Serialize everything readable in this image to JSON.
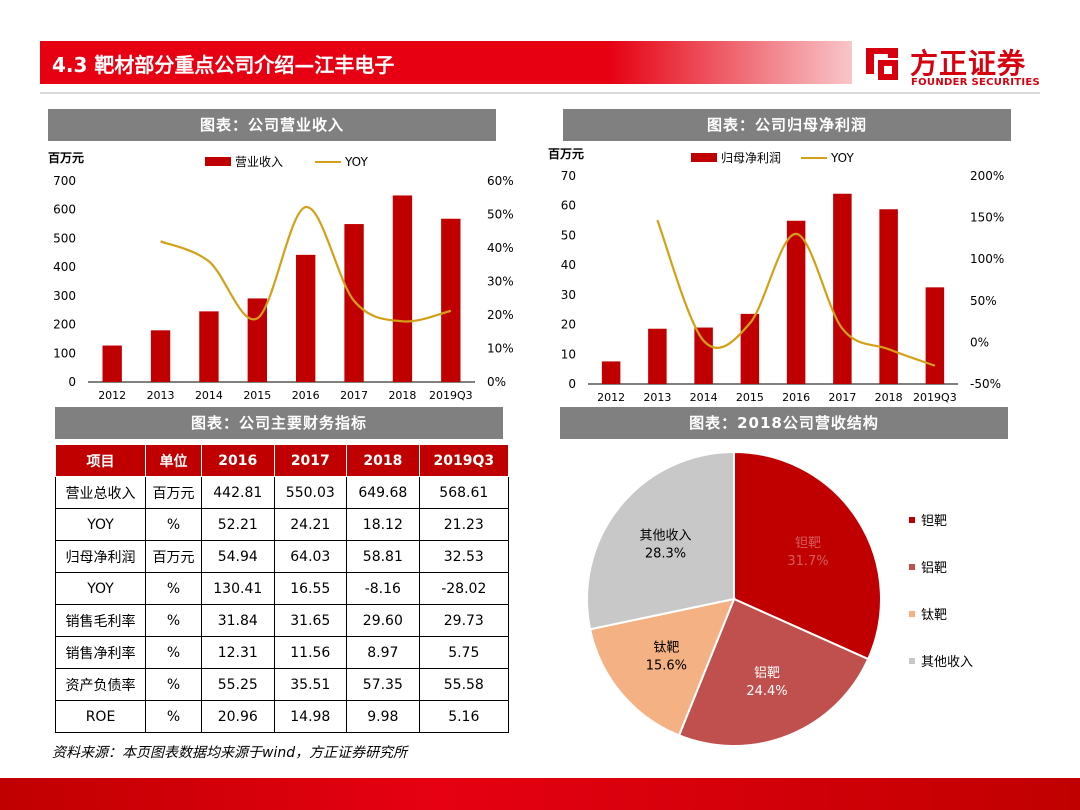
{
  "header": {
    "title": "4.3 靶材部分重点公司介绍—江丰电子"
  },
  "brand": {
    "name_cn": "方正证券",
    "name_en": "FOUNDER SECURITIES",
    "accent": "#e60012"
  },
  "sections": {
    "revenue": "图表：公司营业收入",
    "profit": "图表：公司归母净利润",
    "table": "图表：公司主要财务指标",
    "pie": "图表：2018公司营收结构"
  },
  "chart_data": [
    {
      "type": "bar",
      "title": "图表：公司营业收入",
      "ylabel": "百万元",
      "categories": [
        "2012",
        "2013",
        "2014",
        "2015",
        "2016",
        "2017",
        "2018",
        "2019Q3"
      ],
      "series": [
        {
          "name": "营业收入",
          "axis": "left",
          "values": [
            127,
            180,
            246,
            291,
            442.81,
            550.03,
            649.68,
            568.61
          ],
          "color": "#c00000"
        },
        {
          "name": "YOY",
          "type": "line",
          "axis": "right",
          "values": [
            null,
            42,
            36,
            19,
            52.21,
            24.21,
            18.12,
            21.23
          ],
          "color": "#d4a017"
        }
      ],
      "ylim": [
        0,
        700
      ],
      "yticks": [
        "0",
        "100",
        "200",
        "300",
        "400",
        "500",
        "600",
        "700"
      ],
      "y2lim": [
        0,
        60
      ],
      "y2ticks": [
        "0%",
        "10%",
        "20%",
        "30%",
        "40%",
        "50%",
        "60%"
      ],
      "legend": "top"
    },
    {
      "type": "bar",
      "title": "图表：公司归母净利润",
      "ylabel": "百万元",
      "categories": [
        "2012",
        "2013",
        "2014",
        "2015",
        "2016",
        "2017",
        "2018",
        "2019Q3"
      ],
      "series": [
        {
          "name": "归母净利润",
          "axis": "left",
          "values": [
            7.6,
            18.6,
            19.0,
            23.6,
            54.94,
            64.03,
            58.81,
            32.53
          ],
          "color": "#c00000"
        },
        {
          "name": "YOY",
          "type": "line",
          "axis": "right",
          "values": [
            null,
            147,
            2,
            23,
            130.41,
            16.55,
            -8.16,
            -28.02
          ],
          "color": "#d4a017"
        }
      ],
      "ylim": [
        0,
        70
      ],
      "yticks": [
        "0",
        "10",
        "20",
        "30",
        "40",
        "50",
        "60",
        "70"
      ],
      "y2lim": [
        -50,
        200
      ],
      "y2ticks": [
        "-50%",
        "0%",
        "50%",
        "100%",
        "150%",
        "200%"
      ],
      "legend": "top"
    },
    {
      "type": "pie",
      "title": "图表：2018公司营收结构",
      "labels": [
        "钽靶",
        "铝靶",
        "钛靶",
        "其他收入"
      ],
      "values": [
        31.7,
        24.4,
        15.6,
        28.3
      ],
      "value_labels": [
        "31.7%",
        "24.4%",
        "15.6%",
        "28.3%"
      ],
      "colors": [
        "#c00000",
        "#c0504d",
        "#f4b183",
        "#c8c8c8"
      ],
      "legend": "right"
    }
  ],
  "table": {
    "headers": [
      "项目",
      "单位",
      "2016",
      "2017",
      "2018",
      "2019Q3"
    ],
    "rows": [
      [
        "营业总收入",
        "百万元",
        "442.81",
        "550.03",
        "649.68",
        "568.61"
      ],
      [
        "YOY",
        "%",
        "52.21",
        "24.21",
        "18.12",
        "21.23"
      ],
      [
        "归母净利润",
        "百万元",
        "54.94",
        "64.03",
        "58.81",
        "32.53"
      ],
      [
        "YOY",
        "%",
        "130.41",
        "16.55",
        "-8.16",
        "-28.02"
      ],
      [
        "销售毛利率",
        "%",
        "31.84",
        "31.65",
        "29.60",
        "29.73"
      ],
      [
        "销售净利率",
        "%",
        "12.31",
        "11.56",
        "8.97",
        "5.75"
      ],
      [
        "资产负债率",
        "%",
        "55.25",
        "35.51",
        "57.35",
        "55.58"
      ],
      [
        "ROE",
        "%",
        "20.96",
        "14.98",
        "9.98",
        "5.16"
      ]
    ]
  },
  "source": "资料来源：本页图表数据均来源于wind，方正证券研究所"
}
